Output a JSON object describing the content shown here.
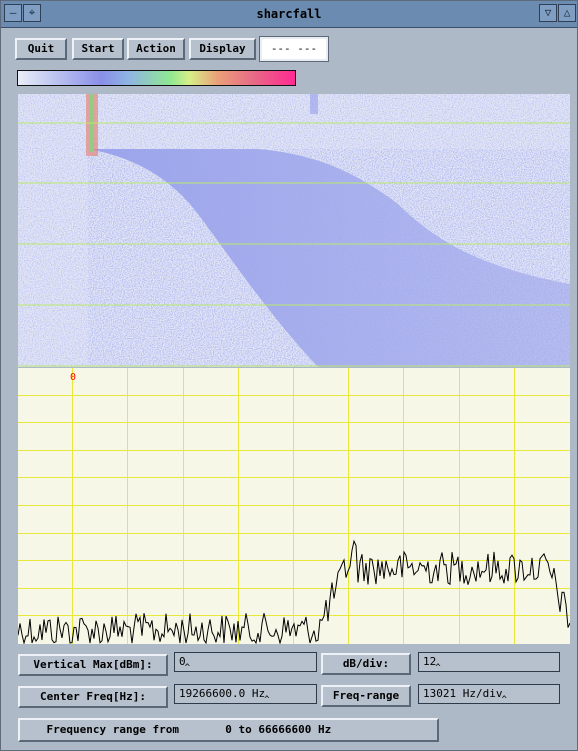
{
  "window": {
    "title": "sharcfall",
    "menu_glyph": "—",
    "move_glyph": "⌖",
    "min_glyph": "▽",
    "max_glyph": "△"
  },
  "toolbar": {
    "quit": "Quit",
    "start": "Start",
    "action": "Action",
    "display": "Display",
    "status": "--- ---"
  },
  "spectrum": {
    "marker_label": "0"
  },
  "controls": {
    "vertical_max_label": "Vertical Max[dBm]:",
    "vertical_max_value": "0",
    "db_div_label": "dB/div:",
    "db_div_value": "12",
    "center_freq_label": "Center Freq[Hz]:",
    "center_freq_value": "19266600.0 Hz",
    "freq_range_button": "Freq-range",
    "freq_range_value": "13021 Hz/div"
  },
  "footer": {
    "freq_range_text": "    Frequency range from       0 to 66666600 Hz"
  },
  "colors": {
    "grid": "#e8e83a",
    "trace": "#000000",
    "waterfall_signal": "#6a78e0",
    "marker": "#ff0000"
  }
}
